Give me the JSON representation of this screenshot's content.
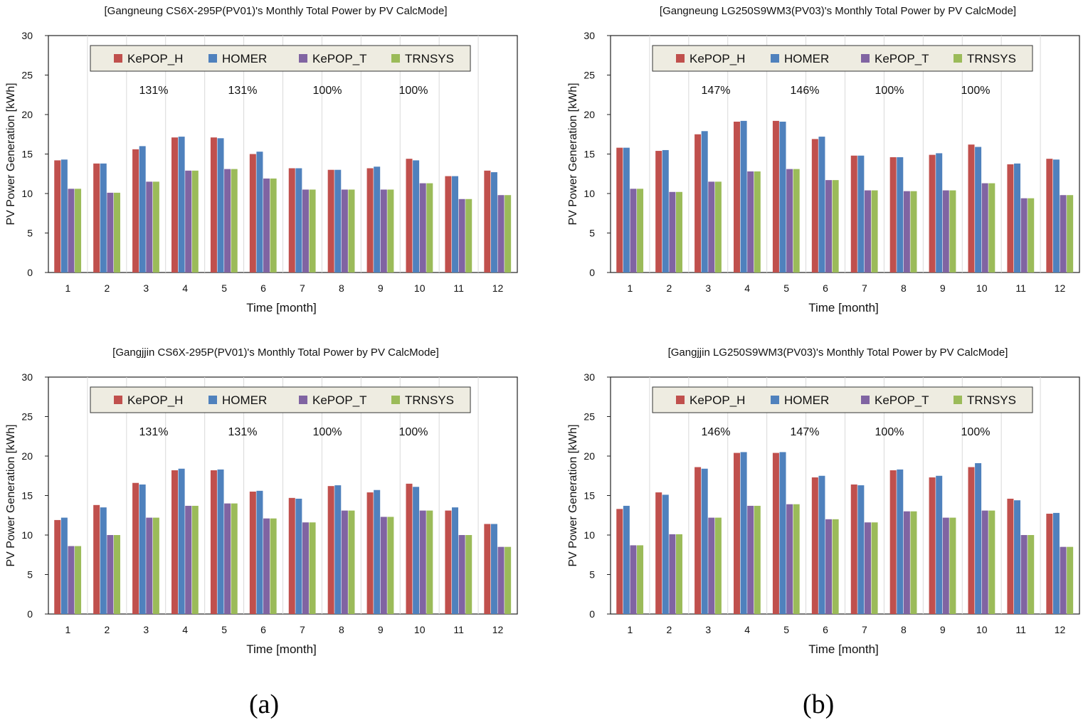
{
  "captions": [
    "(a)",
    "(b)"
  ],
  "legend_labels": [
    "KePOP_H",
    "HOMER",
    "KePOP_T",
    "TRNSYS"
  ],
  "series_colors": [
    "#c0504d",
    "#4f81bd",
    "#8064a2",
    "#9bbb59"
  ],
  "chart_data": [
    {
      "type": "bar",
      "title": "[Gangneung CS6X-295P(PV01)'s Monthly Total Power by PV CalcMode]",
      "xlabel": "Time [month]",
      "ylabel": "PV Power Generation [kWh]",
      "ylim": [
        0,
        30
      ],
      "yticks": [
        0,
        5,
        10,
        15,
        20,
        25,
        30
      ],
      "categories": [
        "1",
        "2",
        "3",
        "4",
        "5",
        "6",
        "7",
        "8",
        "9",
        "10",
        "11",
        "12"
      ],
      "legend": "top-center",
      "annotations": [
        "131%",
        "131%",
        "100%",
        "100%"
      ],
      "series": [
        {
          "name": "KePOP_H",
          "values": [
            14.2,
            13.8,
            15.6,
            17.1,
            17.1,
            15.0,
            13.2,
            13.0,
            13.2,
            14.4,
            12.2,
            12.9
          ]
        },
        {
          "name": "HOMER",
          "values": [
            14.3,
            13.8,
            16.0,
            17.2,
            17.0,
            15.3,
            13.2,
            13.0,
            13.4,
            14.2,
            12.2,
            12.7
          ]
        },
        {
          "name": "KePOP_T",
          "values": [
            10.6,
            10.1,
            11.5,
            12.9,
            13.1,
            11.9,
            10.5,
            10.5,
            10.5,
            11.3,
            9.3,
            9.8
          ]
        },
        {
          "name": "TRNSYS",
          "values": [
            10.6,
            10.1,
            11.5,
            12.9,
            13.1,
            11.9,
            10.5,
            10.5,
            10.5,
            11.3,
            9.3,
            9.8
          ]
        }
      ]
    },
    {
      "type": "bar",
      "title": "[Gangneung LG250S9WM3(PV03)'s Monthly Total Power by PV CalcMode]",
      "xlabel": "Time [month]",
      "ylabel": "PV Power Generation  [kWh]",
      "ylim": [
        0,
        30
      ],
      "yticks": [
        0,
        5,
        10,
        15,
        20,
        25,
        30
      ],
      "categories": [
        "1",
        "2",
        "3",
        "4",
        "5",
        "6",
        "7",
        "8",
        "9",
        "10",
        "11",
        "12"
      ],
      "legend": "top-center",
      "annotations": [
        "147%",
        "146%",
        "100%",
        "100%"
      ],
      "series": [
        {
          "name": "KePOP_H",
          "values": [
            15.8,
            15.4,
            17.5,
            19.1,
            19.2,
            16.9,
            14.8,
            14.6,
            14.9,
            16.2,
            13.7,
            14.4
          ]
        },
        {
          "name": "HOMER",
          "values": [
            15.8,
            15.5,
            17.9,
            19.2,
            19.1,
            17.2,
            14.8,
            14.6,
            15.1,
            15.9,
            13.8,
            14.3
          ]
        },
        {
          "name": "KePOP_T",
          "values": [
            10.6,
            10.2,
            11.5,
            12.8,
            13.1,
            11.7,
            10.4,
            10.3,
            10.4,
            11.3,
            9.4,
            9.8
          ]
        },
        {
          "name": "TRNSYS",
          "values": [
            10.6,
            10.2,
            11.5,
            12.8,
            13.1,
            11.7,
            10.4,
            10.3,
            10.4,
            11.3,
            9.4,
            9.8
          ]
        }
      ]
    },
    {
      "type": "bar",
      "title": "[Gangjjin CS6X-295P(PV01)'s Monthly Total Power by PV CalcMode]",
      "xlabel": "Time [month]",
      "ylabel": "PV Power Generation [kWh]",
      "ylim": [
        0,
        30
      ],
      "yticks": [
        0,
        5,
        10,
        15,
        20,
        25,
        30
      ],
      "categories": [
        "1",
        "2",
        "3",
        "4",
        "5",
        "6",
        "7",
        "8",
        "9",
        "10",
        "11",
        "12"
      ],
      "legend": "top-center",
      "annotations": [
        "131%",
        "131%",
        "100%",
        "100%"
      ],
      "series": [
        {
          "name": "KePOP_H",
          "values": [
            11.9,
            13.8,
            16.6,
            18.2,
            18.2,
            15.5,
            14.7,
            16.2,
            15.4,
            16.5,
            13.1,
            11.4
          ]
        },
        {
          "name": "HOMER",
          "values": [
            12.2,
            13.5,
            16.4,
            18.4,
            18.3,
            15.6,
            14.6,
            16.3,
            15.7,
            16.1,
            13.5,
            11.4
          ]
        },
        {
          "name": "KePOP_T",
          "values": [
            8.6,
            10.0,
            12.2,
            13.7,
            14.0,
            12.1,
            11.6,
            13.1,
            12.3,
            13.1,
            10.0,
            8.5
          ]
        },
        {
          "name": "TRNSYS",
          "values": [
            8.6,
            10.0,
            12.2,
            13.7,
            14.0,
            12.1,
            11.6,
            13.1,
            12.3,
            13.1,
            10.0,
            8.5
          ]
        }
      ]
    },
    {
      "type": "bar",
      "title": "[Gangjjin LG250S9WM3(PV03)'s Monthly Total Power by PV CalcMode]",
      "xlabel": "Time [month]",
      "ylabel": "PV Power Generation [kWh]",
      "ylim": [
        0,
        30
      ],
      "yticks": [
        0,
        5,
        10,
        15,
        20,
        25,
        30
      ],
      "categories": [
        "1",
        "2",
        "3",
        "4",
        "5",
        "6",
        "7",
        "8",
        "9",
        "10",
        "11",
        "12"
      ],
      "legend": "top-center",
      "annotations": [
        "146%",
        "147%",
        "100%",
        "100%"
      ],
      "series": [
        {
          "name": "KePOP_H",
          "values": [
            13.3,
            15.4,
            18.6,
            20.4,
            20.4,
            17.3,
            16.4,
            18.2,
            17.3,
            18.6,
            14.6,
            12.7
          ]
        },
        {
          "name": "HOMER",
          "values": [
            13.7,
            15.1,
            18.4,
            20.5,
            20.5,
            17.5,
            16.3,
            18.3,
            17.5,
            19.1,
            14.4,
            12.8
          ]
        },
        {
          "name": "KePOP_T",
          "values": [
            8.7,
            10.1,
            12.2,
            13.7,
            13.9,
            12.0,
            11.6,
            13.0,
            12.2,
            13.1,
            10.0,
            8.5
          ]
        },
        {
          "name": "TRNSYS",
          "values": [
            8.7,
            10.1,
            12.2,
            13.7,
            13.9,
            12.0,
            11.6,
            13.0,
            12.2,
            13.1,
            10.0,
            8.5
          ]
        }
      ]
    }
  ]
}
